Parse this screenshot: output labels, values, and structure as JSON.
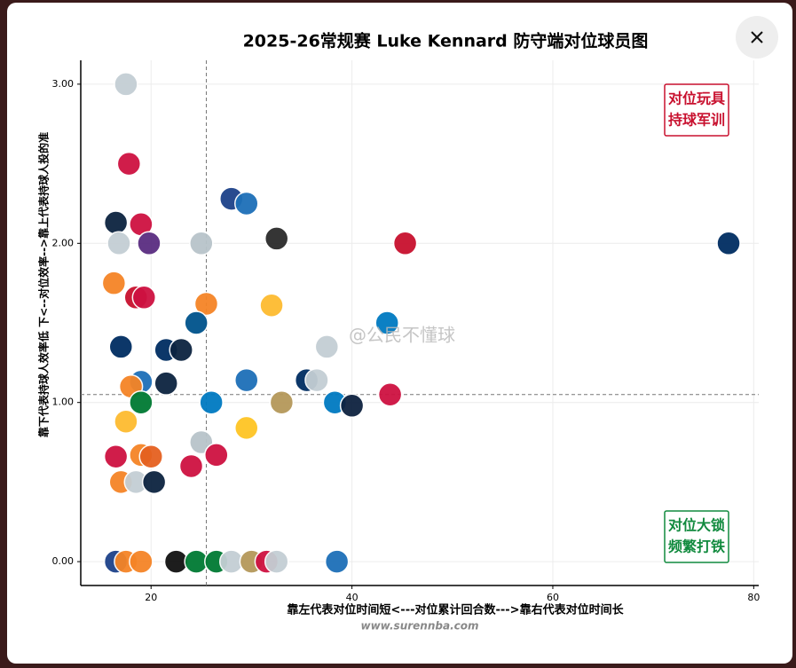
{
  "chart_data": {
    "type": "scatter",
    "title": "2025-26常规赛 Luke Kennard 防守端对位球员图",
    "x_label": "靠左代表对位时间短<---对位累计回合数--->靠右代表对位时间长",
    "y_label": "靠下代表持球人效率低 下<--对位效率-->靠上代表持球人投的准",
    "watermark": "@公民不懂球",
    "source": "www.surennba.com",
    "annotations": [
      {
        "lines": [
          "对位玩具",
          "持球军训"
        ],
        "color": "#c8102e"
      },
      {
        "lines": [
          "对位大锁",
          "频繁打铁"
        ],
        "color": "#118a3e"
      }
    ],
    "x": [
      17.5,
      17.8,
      28,
      29.5,
      16.5,
      19,
      16.8,
      19.8,
      25,
      32.5,
      45.3,
      77.5,
      16.3,
      18.5,
      19.3,
      25.5,
      32,
      24.5,
      43.5,
      17,
      21.5,
      23,
      37.5,
      29.5,
      35.5,
      36.5,
      19,
      21.5,
      18,
      26,
      33,
      38.3,
      40,
      43.8,
      19,
      17.5,
      29.5,
      25,
      26.5,
      16.5,
      19,
      20,
      24,
      17,
      18.5,
      20.3,
      16.5,
      17.5,
      19,
      22.5,
      24.5,
      26.5,
      28,
      30,
      31.5,
      32.5,
      38.5
    ],
    "y": [
      3.0,
      2.5,
      2.28,
      2.25,
      2.13,
      2.12,
      2.0,
      2.0,
      2.0,
      2.03,
      2.0,
      2.0,
      1.75,
      1.66,
      1.66,
      1.62,
      1.61,
      1.5,
      1.5,
      1.35,
      1.33,
      1.33,
      1.35,
      1.14,
      1.14,
      1.14,
      1.13,
      1.12,
      1.1,
      1.0,
      1.0,
      1.0,
      0.98,
      1.05,
      1.0,
      0.88,
      0.84,
      0.75,
      0.67,
      0.66,
      0.67,
      0.66,
      0.6,
      0.5,
      0.5,
      0.5,
      0.0,
      0.0,
      0.0,
      0.0,
      0.0,
      0.0,
      0.0,
      0.0,
      0.0,
      0.0,
      0.0
    ],
    "colors": [
      "#c4ced4",
      "#ce1141",
      "#1d428a",
      "#1d6fb8",
      "#0c2340",
      "#ce1141",
      "#c4ced4",
      "#5a2d81",
      "#b8c4ca",
      "#2b2b2b",
      "#c8102e",
      "#002d62",
      "#f58426",
      "#c8102e",
      "#ce1141",
      "#f58426",
      "#fdbb30",
      "#00538c",
      "#007ac1",
      "#002d62",
      "#002d62",
      "#0c2340",
      "#c4ced4",
      "#1d6fb8",
      "#002d62",
      "#c4ced4",
      "#1d6fb8",
      "#0c2340",
      "#f58426",
      "#007ac1",
      "#b5985a",
      "#007ac1",
      "#0e2240",
      "#ce1141",
      "#007a33",
      "#fdbb30",
      "#fec524",
      "#b8c4ca",
      "#ce1141",
      "#ce1141",
      "#f58426",
      "#e56020",
      "#ce1141",
      "#f58426",
      "#c4ced4",
      "#0c2340",
      "#1d428a",
      "#f58426",
      "#f58426",
      "#111111",
      "#007a33",
      "#007a33",
      "#c4ced4",
      "#b5985a",
      "#ce1141",
      "#c4ced4",
      "#1d6fb8"
    ],
    "ref_x": 25.5,
    "ref_y": 1.05,
    "xlim": [
      13,
      80.5
    ],
    "ylim": [
      -0.15,
      3.15
    ],
    "xticks": [
      20,
      40,
      60,
      80
    ],
    "yticks": [
      {
        "value": 0,
        "label": "0.00"
      },
      {
        "value": 1,
        "label": "1.00"
      },
      {
        "value": 2,
        "label": "2.00"
      },
      {
        "value": 3,
        "label": "3.00"
      }
    ],
    "grid": true
  }
}
